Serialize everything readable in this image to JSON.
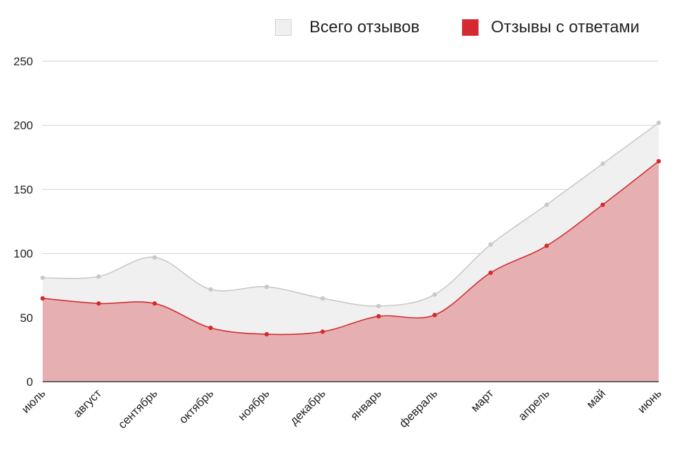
{
  "chart_data": {
    "type": "area",
    "categories": [
      "июль",
      "август",
      "сентябрь",
      "октябрь",
      "ноябрь",
      "декабрь",
      "январь",
      "февраль",
      "март",
      "апрель",
      "май",
      "июнь"
    ],
    "series": [
      {
        "name": "Всего отзывов",
        "color": "#c8c8c8",
        "fill": "#f0f0f0",
        "values": [
          81,
          82,
          97,
          72,
          74,
          65,
          59,
          68,
          107,
          138,
          170,
          202
        ]
      },
      {
        "name": "Отзывы с ответами",
        "color": "#d42a2f",
        "fill": "#e6b0b3",
        "values": [
          65,
          61,
          61,
          42,
          37,
          39,
          51,
          52,
          85,
          106,
          138,
          172
        ]
      }
    ],
    "yticks": [
      "0",
      "50",
      "100",
      "150",
      "200",
      "250"
    ],
    "ylim": [
      0,
      250
    ],
    "grid": true,
    "legend_position": "top-right",
    "curve": "smooth"
  }
}
